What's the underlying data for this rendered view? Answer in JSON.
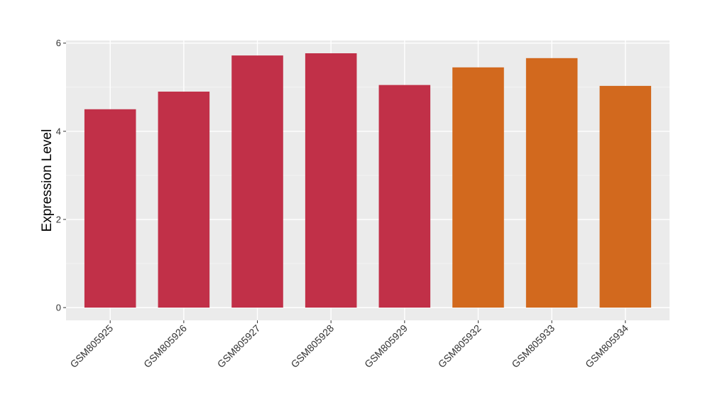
{
  "chart_data": {
    "type": "bar",
    "y_label": "Expression Level",
    "categories": [
      "GSM805925",
      "GSM805926",
      "GSM805927",
      "GSM805928",
      "GSM805929",
      "GSM805932",
      "GSM805933",
      "GSM805934"
    ],
    "values": [
      4.5,
      4.9,
      5.72,
      5.77,
      5.05,
      5.45,
      5.66,
      5.03
    ],
    "colors": [
      "#c13048",
      "#c13048",
      "#c13048",
      "#c13048",
      "#c13048",
      "#d2691e",
      "#d2691e",
      "#d2691e"
    ],
    "ylim": [
      -0.29,
      6.06
    ],
    "yticks": [
      0,
      2,
      4,
      6
    ],
    "grid": true
  }
}
